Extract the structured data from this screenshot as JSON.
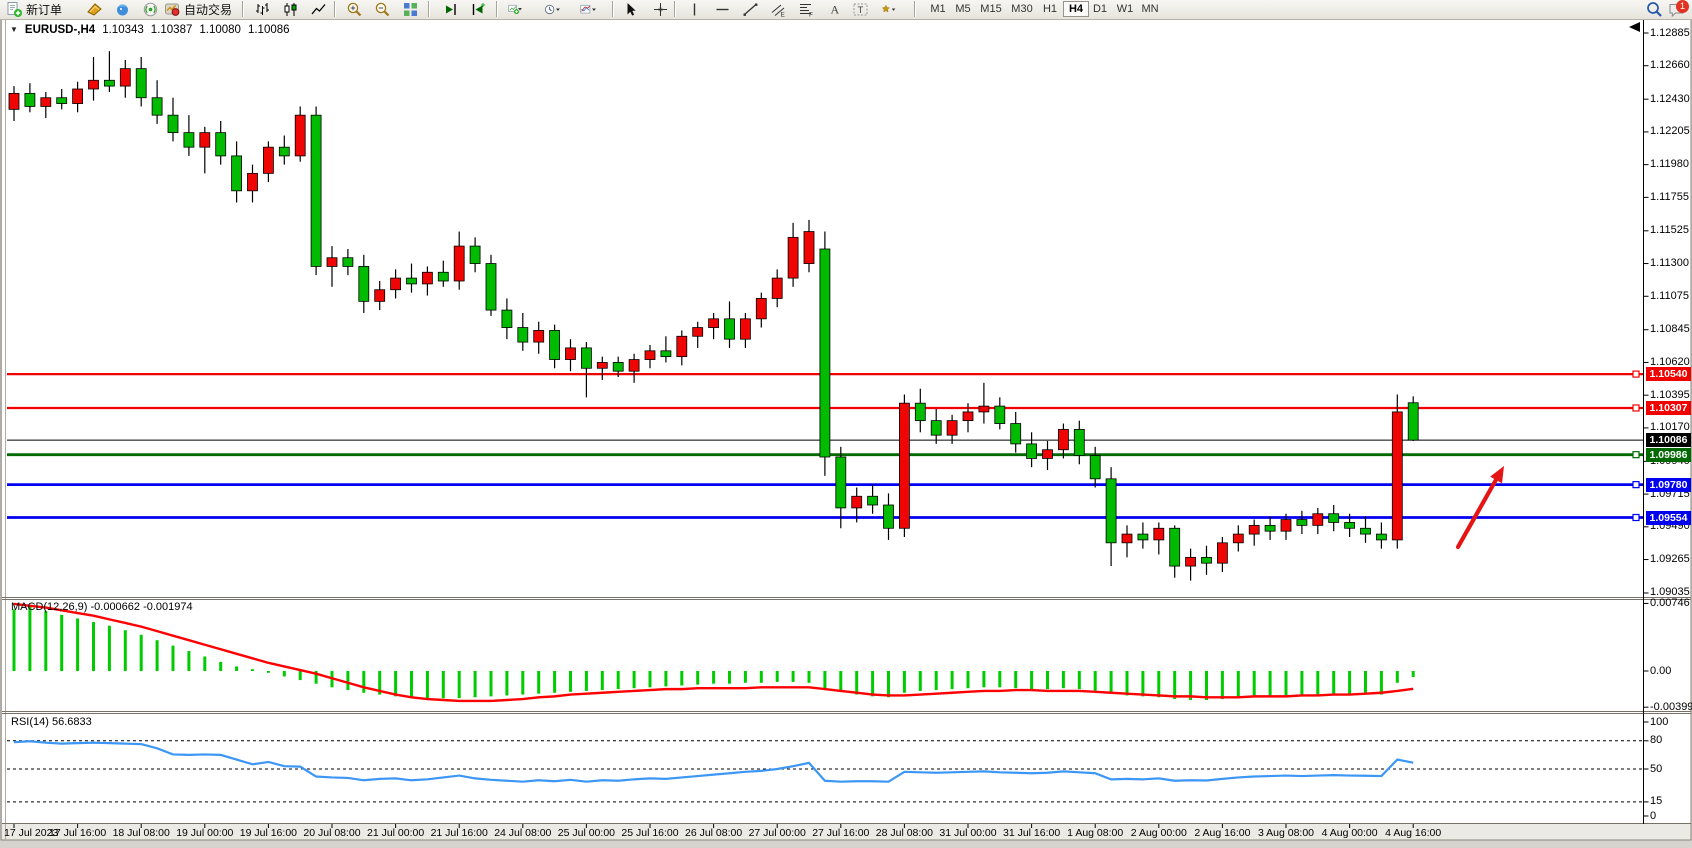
{
  "toolbar": {
    "new_order_label": "新订单",
    "auto_trading_label": "自动交易",
    "timeframes": [
      "M1",
      "M5",
      "M15",
      "M30",
      "H1",
      "H4",
      "D1",
      "W1",
      "MN"
    ],
    "active_timeframe": "H4",
    "notification_count": "1",
    "icons": [
      "new-order-icon",
      "metaeditor-icon",
      "community-icon",
      "signals-icon",
      "autotrading-icon",
      "bar-chart-icon",
      "candlestick-icon",
      "line-chart-icon",
      "zoom-in-icon",
      "zoom-out-icon",
      "tile-windows-icon",
      "scroll-to-end-icon",
      "auto-scroll-icon",
      "new-chart-dropdown-icon",
      "periodicity-dropdown-icon",
      "indicators-dropdown-icon",
      "cursor-icon",
      "crosshair-icon",
      "vertical-line-icon",
      "horizontal-line-icon",
      "trendline-icon",
      "equidistant-channel-icon",
      "fibonacci-icon",
      "text-icon",
      "text-label-icon",
      "arrows-dropdown-icon",
      "search-icon",
      "chat-icon"
    ]
  },
  "window": {
    "symbol": "EURUSD-,H4",
    "ohlc": {
      "open": "1.10343",
      "high": "1.10387",
      "low": "1.10080",
      "close": "1.10086"
    }
  },
  "chart_data": {
    "type": "candlestick",
    "symbol": "EURUSD-",
    "timeframe": "H4",
    "price_axis_labels": [
      "1.12885",
      "1.12660",
      "1.12430",
      "1.12205",
      "1.11980",
      "1.11755",
      "1.11525",
      "1.11300",
      "1.11075",
      "1.10845",
      "1.10620",
      "1.10395",
      "1.10170",
      "1.09940",
      "1.09715",
      "1.09490",
      "1.09265",
      "1.09035"
    ],
    "time_labels": [
      "17 Jul 2023",
      "17 Jul 16:00",
      "18 Jul 08:00",
      "19 Jul 00:00",
      "19 Jul 16:00",
      "20 Jul 08:00",
      "21 Jul 00:00",
      "21 Jul 16:00",
      "24 Jul 08:00",
      "25 Jul 00:00",
      "25 Jul 16:00",
      "26 Jul 08:00",
      "27 Jul 00:00",
      "27 Jul 16:00",
      "28 Jul 08:00",
      "31 Jul 00:00",
      "31 Jul 16:00",
      "1 Aug 08:00",
      "2 Aug 00:00",
      "2 Aug 16:00",
      "3 Aug 08:00",
      "4 Aug 00:00",
      "4 Aug 16:00"
    ],
    "candles": [
      [
        1.1236,
        1.1252,
        1.1228,
        1.1247
      ],
      [
        1.1247,
        1.1254,
        1.1234,
        1.1238
      ],
      [
        1.1238,
        1.1248,
        1.123,
        1.1244
      ],
      [
        1.1244,
        1.125,
        1.1236,
        1.124
      ],
      [
        1.124,
        1.1255,
        1.1234,
        1.125
      ],
      [
        1.125,
        1.1272,
        1.1242,
        1.1256
      ],
      [
        1.1256,
        1.1276,
        1.1248,
        1.1252
      ],
      [
        1.1252,
        1.127,
        1.1244,
        1.1264
      ],
      [
        1.1264,
        1.1272,
        1.1238,
        1.1244
      ],
      [
        1.1244,
        1.1256,
        1.1226,
        1.1232
      ],
      [
        1.1232,
        1.1244,
        1.1214,
        1.122
      ],
      [
        1.122,
        1.1232,
        1.1204,
        1.121
      ],
      [
        1.121,
        1.1224,
        1.1192,
        1.122
      ],
      [
        1.122,
        1.1228,
        1.1198,
        1.1204
      ],
      [
        1.1204,
        1.1214,
        1.1172,
        1.118
      ],
      [
        1.118,
        1.1198,
        1.1172,
        1.1192
      ],
      [
        1.1192,
        1.1214,
        1.1186,
        1.121
      ],
      [
        1.121,
        1.1218,
        1.1198,
        1.1204
      ],
      [
        1.1204,
        1.1238,
        1.12,
        1.1232
      ],
      [
        1.1232,
        1.1238,
        1.1122,
        1.1128
      ],
      [
        1.1128,
        1.1142,
        1.1114,
        1.1134
      ],
      [
        1.1134,
        1.114,
        1.1122,
        1.1128
      ],
      [
        1.1128,
        1.1136,
        1.1096,
        1.1104
      ],
      [
        1.1104,
        1.1118,
        1.1098,
        1.1112
      ],
      [
        1.1112,
        1.1126,
        1.1106,
        1.112
      ],
      [
        1.112,
        1.113,
        1.111,
        1.1116
      ],
      [
        1.1116,
        1.1128,
        1.1108,
        1.1124
      ],
      [
        1.1124,
        1.1132,
        1.1114,
        1.1118
      ],
      [
        1.1118,
        1.1152,
        1.1112,
        1.1142
      ],
      [
        1.1142,
        1.1148,
        1.1124,
        1.113
      ],
      [
        1.113,
        1.1136,
        1.1094,
        1.1098
      ],
      [
        1.1098,
        1.1106,
        1.1078,
        1.1086
      ],
      [
        1.1086,
        1.1096,
        1.107,
        1.1076
      ],
      [
        1.1076,
        1.109,
        1.1068,
        1.1084
      ],
      [
        1.1084,
        1.1088,
        1.1058,
        1.1064
      ],
      [
        1.1064,
        1.1078,
        1.1056,
        1.1072
      ],
      [
        1.1072,
        1.1076,
        1.1038,
        1.1058
      ],
      [
        1.1058,
        1.1066,
        1.105,
        1.1062
      ],
      [
        1.1062,
        1.1066,
        1.1052,
        1.1056
      ],
      [
        1.1056,
        1.1068,
        1.1048,
        1.1064
      ],
      [
        1.1064,
        1.1074,
        1.1058,
        1.107
      ],
      [
        1.107,
        1.108,
        1.1062,
        1.1066
      ],
      [
        1.1066,
        1.1084,
        1.106,
        1.108
      ],
      [
        1.108,
        1.109,
        1.1072,
        1.1086
      ],
      [
        1.1086,
        1.1096,
        1.1078,
        1.1092
      ],
      [
        1.1092,
        1.1104,
        1.1072,
        1.1078
      ],
      [
        1.1078,
        1.1096,
        1.1072,
        1.1092
      ],
      [
        1.1092,
        1.111,
        1.1086,
        1.1106
      ],
      [
        1.1106,
        1.1126,
        1.11,
        1.112
      ],
      [
        1.112,
        1.1158,
        1.1114,
        1.1148
      ],
      [
        1.113,
        1.116,
        1.1124,
        1.1152
      ],
      [
        1.114,
        1.1152,
        1.0984,
        1.0997
      ],
      [
        1.0997,
        1.1004,
        1.0948,
        1.0962
      ],
      [
        1.0962,
        1.0976,
        1.0952,
        1.097
      ],
      [
        1.097,
        1.0978,
        1.0958,
        1.0964
      ],
      [
        1.0964,
        1.0972,
        1.094,
        1.0948
      ],
      [
        1.0948,
        1.104,
        1.0942,
        1.1034
      ],
      [
        1.1034,
        1.1044,
        1.1014,
        1.1022
      ],
      [
        1.1022,
        1.103,
        1.1006,
        1.1012
      ],
      [
        1.1012,
        1.1026,
        1.1006,
        1.1022
      ],
      [
        1.1022,
        1.1034,
        1.1014,
        1.1028
      ],
      [
        1.1028,
        1.1048,
        1.102,
        1.1032
      ],
      [
        1.1032,
        1.1038,
        1.1016,
        1.102
      ],
      [
        1.102,
        1.1028,
        1.1,
        1.1006
      ],
      [
        1.1006,
        1.1014,
        1.099,
        1.0996
      ],
      [
        1.0996,
        1.1008,
        1.0988,
        1.1002
      ],
      [
        1.1002,
        1.102,
        1.0996,
        1.1016
      ],
      [
        1.1016,
        1.1022,
        1.0992,
        1.0998
      ],
      [
        1.0998,
        1.1004,
        1.0976,
        1.0982
      ],
      [
        1.0982,
        1.099,
        1.0922,
        1.0938
      ],
      [
        1.0938,
        1.095,
        1.0928,
        1.0944
      ],
      [
        1.0944,
        1.0952,
        1.0934,
        1.094
      ],
      [
        1.094,
        1.0952,
        1.093,
        1.0948
      ],
      [
        1.0948,
        1.095,
        1.0914,
        1.0922
      ],
      [
        1.0922,
        1.0934,
        1.0912,
        1.0928
      ],
      [
        1.0928,
        1.0936,
        1.0916,
        1.0924
      ],
      [
        1.0924,
        1.0942,
        1.0918,
        1.0938
      ],
      [
        1.0938,
        1.095,
        1.0932,
        1.0944
      ],
      [
        1.0944,
        1.0954,
        1.0936,
        1.095
      ],
      [
        1.095,
        1.0956,
        1.094,
        1.0946
      ],
      [
        1.0946,
        1.0958,
        1.094,
        1.0954
      ],
      [
        1.0954,
        1.096,
        1.0944,
        1.095
      ],
      [
        1.095,
        1.0962,
        1.0944,
        1.0958
      ],
      [
        1.0958,
        1.0964,
        1.0946,
        1.0952
      ],
      [
        1.0952,
        1.0958,
        1.0942,
        1.0948
      ],
      [
        1.0948,
        1.0956,
        1.0938,
        1.0944
      ],
      [
        1.0944,
        1.0952,
        1.0934,
        1.094
      ],
      [
        1.094,
        1.104,
        1.0934,
        1.1028
      ],
      [
        1.10343,
        1.10387,
        1.1008,
        1.10086
      ]
    ],
    "horizontal_levels": [
      {
        "price": 1.1054,
        "label": "1.10540",
        "color": "#f20000",
        "width": 2.2
      },
      {
        "price": 1.10307,
        "label": "1.10307",
        "color": "#f20000",
        "width": 2.2
      },
      {
        "price": 1.10086,
        "label": "1.10086",
        "color": "#000000",
        "width": 1,
        "kind": "current-price"
      },
      {
        "price": 1.09986,
        "label": "1.09986",
        "color": "#006a00",
        "width": 2.8
      },
      {
        "price": 1.0978,
        "label": "1.09780",
        "color": "#0000f0",
        "width": 2.8
      },
      {
        "price": 1.09554,
        "label": "1.09554",
        "color": "#0000f0",
        "width": 2.8
      }
    ],
    "colors": {
      "bull": "#f00505",
      "bear": "#00bb00",
      "wick": "#000000",
      "macd_hist": "#00cc00",
      "macd_signal": "#ff0000",
      "rsi_line": "#3c96f5"
    },
    "macd": {
      "name": "MACD(12,26,9)",
      "values_text": "-0.000662 -0.001974",
      "axis": [
        {
          "text": "0.00746",
          "value": 0.00746
        },
        {
          "text": "0.00",
          "value": 0
        },
        {
          "text": "-0.003993",
          "value": -0.003993
        }
      ],
      "histogram": [
        0.0068,
        0.0071,
        0.0066,
        0.0062,
        0.0058,
        0.0054,
        0.005,
        0.0045,
        0.004,
        0.0034,
        0.0028,
        0.0022,
        0.0016,
        0.001,
        0.0005,
        0.0002,
        -0.0002,
        -0.0006,
        -0.001,
        -0.0014,
        -0.0018,
        -0.0021,
        -0.0024,
        -0.0026,
        -0.0028,
        -0.0029,
        -0.003,
        -0.003,
        -0.003,
        -0.0029,
        -0.0028,
        -0.0027,
        -0.0026,
        -0.0025,
        -0.0024,
        -0.0023,
        -0.0022,
        -0.0021,
        -0.002,
        -0.0019,
        -0.0018,
        -0.0017,
        -0.0016,
        -0.0015,
        -0.0014,
        -0.0014,
        -0.0013,
        -0.0013,
        -0.0012,
        -0.0012,
        -0.0013,
        -0.0019,
        -0.0023,
        -0.0026,
        -0.0028,
        -0.0029,
        -0.0024,
        -0.0022,
        -0.0021,
        -0.002,
        -0.0019,
        -0.0018,
        -0.0018,
        -0.0019,
        -0.002,
        -0.002,
        -0.0019,
        -0.002,
        -0.0022,
        -0.0025,
        -0.0027,
        -0.0028,
        -0.0029,
        -0.0031,
        -0.0032,
        -0.0032,
        -0.0031,
        -0.003,
        -0.0029,
        -0.0028,
        -0.0027,
        -0.0026,
        -0.0026,
        -0.0025,
        -0.0025,
        -0.0026,
        -0.0026,
        -0.0013,
        -0.00066
      ],
      "signal": [
        0.0074,
        0.0072,
        0.007,
        0.0067,
        0.0064,
        0.0061,
        0.0057,
        0.0053,
        0.0049,
        0.0044,
        0.0039,
        0.0034,
        0.0029,
        0.0024,
        0.0019,
        0.0014,
        0.0009,
        0.0005,
        0.0001,
        -0.0003,
        -0.0008,
        -0.0013,
        -0.0018,
        -0.0022,
        -0.0026,
        -0.0029,
        -0.0031,
        -0.0032,
        -0.0033,
        -0.0033,
        -0.0033,
        -0.0032,
        -0.0031,
        -0.0029,
        -0.0028,
        -0.0026,
        -0.0025,
        -0.0024,
        -0.0023,
        -0.0022,
        -0.0021,
        -0.002,
        -0.002,
        -0.0019,
        -0.0019,
        -0.0019,
        -0.0019,
        -0.0018,
        -0.0018,
        -0.0018,
        -0.0018,
        -0.002,
        -0.0022,
        -0.0024,
        -0.0026,
        -0.0027,
        -0.0027,
        -0.0026,
        -0.0025,
        -0.0024,
        -0.0023,
        -0.0022,
        -0.0022,
        -0.0021,
        -0.0021,
        -0.0022,
        -0.0022,
        -0.0022,
        -0.0023,
        -0.0024,
        -0.0025,
        -0.0026,
        -0.0027,
        -0.0028,
        -0.0028,
        -0.0029,
        -0.0029,
        -0.0029,
        -0.0028,
        -0.0028,
        -0.0028,
        -0.0027,
        -0.0027,
        -0.0026,
        -0.0026,
        -0.0025,
        -0.0024,
        -0.0022,
        -0.00197
      ]
    },
    "rsi": {
      "label": "RSI(14) 56.6833",
      "axis": [
        {
          "text": "100",
          "value": 100
        },
        {
          "text": "80",
          "value": 80
        },
        {
          "text": "50",
          "value": 50
        },
        {
          "text": "15",
          "value": 15
        },
        {
          "text": "0",
          "value": 0
        }
      ],
      "levels": [
        80,
        50,
        15
      ],
      "values": [
        78.5,
        79.5,
        78,
        77,
        77.5,
        78,
        77.5,
        77,
        76.5,
        72,
        65.5,
        65,
        65.5,
        65,
        60,
        55,
        57.5,
        53,
        52.5,
        42,
        41,
        40.5,
        38,
        39.5,
        40,
        38,
        39,
        41,
        43,
        40,
        38.5,
        37.5,
        36.5,
        38,
        37,
        38.5,
        36.5,
        38,
        37.5,
        39,
        40,
        39.5,
        41,
        42.5,
        44,
        45.5,
        47,
        48,
        50,
        53,
        56.5,
        37.5,
        36.5,
        37,
        37,
        36.5,
        47,
        46.5,
        46,
        46.5,
        47,
        47.5,
        46.5,
        46,
        45.5,
        46,
        47.5,
        46.5,
        45.5,
        39,
        39.5,
        39,
        40,
        37.5,
        38,
        37.8,
        39.5,
        41,
        42,
        42.5,
        43,
        42.5,
        43,
        43.5,
        43,
        42.8,
        42.5,
        60,
        56.68
      ]
    },
    "annotation_arrow": {
      "from": [
        1458,
        547
      ],
      "to": [
        1504,
        466
      ],
      "color": "#e51515"
    }
  }
}
